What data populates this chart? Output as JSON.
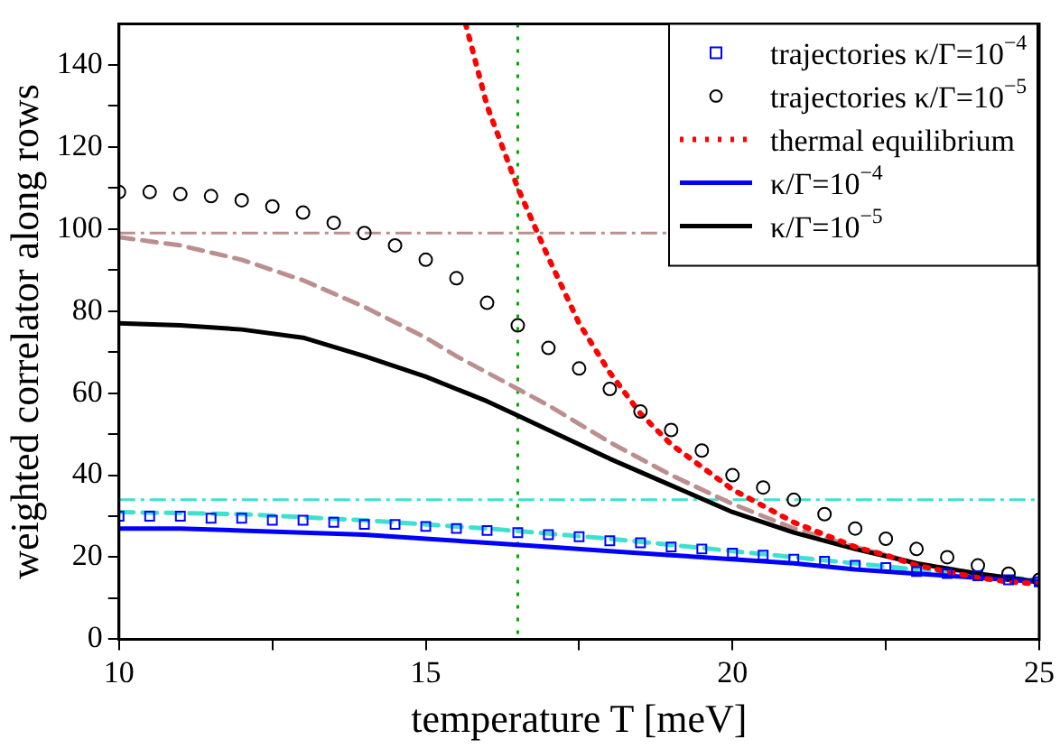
{
  "chart_data": {
    "type": "line",
    "xlabel": "temperature T [meV]",
    "ylabel": "weighted correlator along rows",
    "xlim": [
      10,
      25
    ],
    "xticks": [
      10,
      {
        "value": 12.5,
        "label": null
      },
      15,
      {
        "value": 17.5,
        "label": null
      },
      20,
      {
        "value": 22.5,
        "label": null
      },
      25
    ],
    "ylim": [
      0,
      150
    ],
    "yticks": [
      0,
      {
        "value": 10,
        "label": null
      },
      20,
      {
        "value": 30,
        "label": null
      },
      40,
      {
        "value": 50,
        "label": null
      },
      60,
      {
        "value": 70,
        "label": null
      },
      80,
      {
        "value": 90,
        "label": null
      },
      100,
      {
        "value": 110,
        "label": null
      },
      120,
      {
        "value": 130,
        "label": null
      },
      140
    ],
    "grid": false,
    "legend": "top right",
    "series": [
      {
        "name": "trajectories κ/Γ=10$^{−4}$",
        "type": "scatter",
        "marker": "square",
        "color": "#0000ff",
        "x": [
          10,
          10.5,
          11,
          11.5,
          12,
          12.5,
          13,
          13.5,
          14,
          14.5,
          15,
          15.5,
          16,
          16.5,
          17,
          17.5,
          18,
          18.5,
          19,
          19.5,
          20,
          20.5,
          21,
          21.5,
          22,
          22.5,
          23,
          23.5,
          24,
          24.5,
          25
        ],
        "values": [
          30,
          30,
          30,
          29.5,
          29.5,
          29,
          29,
          28.5,
          28,
          28,
          27.5,
          27,
          26.5,
          26,
          25.5,
          25,
          24,
          23.5,
          22.5,
          22,
          21,
          20.5,
          19.5,
          19,
          18,
          17.5,
          16.5,
          16,
          15.5,
          14.5,
          14
        ]
      },
      {
        "name": "trajectories κ/Γ=10$^{−5}$",
        "type": "scatter",
        "marker": "circle",
        "color": "#000000",
        "x": [
          10,
          10.5,
          11,
          11.5,
          12,
          12.5,
          13,
          13.5,
          14,
          14.5,
          15,
          15.5,
          16,
          16.5,
          17,
          17.5,
          18,
          18.5,
          19,
          19.5,
          20,
          20.5,
          21,
          21.5,
          22,
          22.5,
          23,
          23.5,
          24,
          24.5,
          25
        ],
        "values": [
          109,
          109,
          108.5,
          108,
          107,
          105.5,
          104,
          101.5,
          99,
          96,
          92.5,
          88,
          82,
          76.5,
          71,
          66,
          61,
          55.5,
          51,
          46,
          40,
          37,
          34,
          30.5,
          27,
          24.5,
          22,
          20,
          18,
          16,
          14.5
        ]
      },
      {
        "name": "thermal equilibrium",
        "line_style": "dotted",
        "color": "#ff0000",
        "x": [
          15.65,
          16,
          16.5,
          17,
          17.5,
          18,
          18.5,
          19,
          19.5,
          20,
          20.5,
          21,
          21.5,
          22,
          22.5,
          23,
          23.5,
          24,
          24.5,
          25
        ],
        "values": [
          150,
          130,
          110,
          93,
          77,
          65,
          55,
          47.5,
          42,
          36.5,
          32.5,
          28.5,
          25.5,
          22.5,
          20.5,
          18,
          16.5,
          15,
          14,
          13.5
        ]
      },
      {
        "name": "κ/Γ=10$^{−4}$",
        "line_style": "solid",
        "color": "#0000ff",
        "x": [
          10,
          11,
          12,
          13,
          14,
          15,
          16,
          17,
          18,
          19,
          20,
          21,
          22,
          23,
          24,
          25
        ],
        "values": [
          27,
          27,
          26.5,
          26,
          25.5,
          24.5,
          23.5,
          22.5,
          21.5,
          20.5,
          19.5,
          18.5,
          17,
          16,
          15,
          14
        ]
      },
      {
        "name": "κ/Γ=10$^{−5}$",
        "line_style": "solid",
        "color": "#000000",
        "x": [
          10,
          11,
          12,
          13,
          14,
          15,
          16,
          16.5,
          17,
          18,
          19,
          20,
          21,
          22,
          23,
          24,
          25
        ],
        "values": [
          77,
          76.5,
          75.5,
          73.5,
          69,
          64,
          58,
          54.5,
          51,
          44,
          37.5,
          31,
          26,
          22,
          18.5,
          16,
          14
        ]
      },
      {
        "line_style": "dashed",
        "color": "#bc8f8f",
        "x": [
          10,
          11,
          12,
          13,
          14,
          15,
          15.5,
          16,
          16.5,
          17,
          18,
          19,
          20,
          21,
          22,
          23,
          24,
          25
        ],
        "values": [
          98,
          96,
          92.5,
          87.5,
          81,
          73.5,
          69,
          65,
          61,
          57,
          48,
          40,
          33,
          27,
          22.5,
          18.5,
          16,
          14
        ]
      },
      {
        "line_style": "dashed",
        "color": "#40e0d0",
        "x": [
          10,
          12,
          14,
          16,
          18,
          20,
          22,
          24,
          25
        ],
        "values": [
          31,
          30.5,
          29,
          27,
          24.5,
          21.5,
          18.5,
          15.5,
          14.5
        ]
      }
    ],
    "ref_lines": [
      {
        "axis": "y",
        "value": 99,
        "color": "#bc8f8f",
        "line_style": "dashed"
      },
      {
        "axis": "y",
        "value": 34,
        "color": "#40e0d0",
        "line_style": "dashed"
      },
      {
        "axis": "x",
        "value": 16.5,
        "color": "#00aa00",
        "line_style": "dotted"
      }
    ]
  }
}
